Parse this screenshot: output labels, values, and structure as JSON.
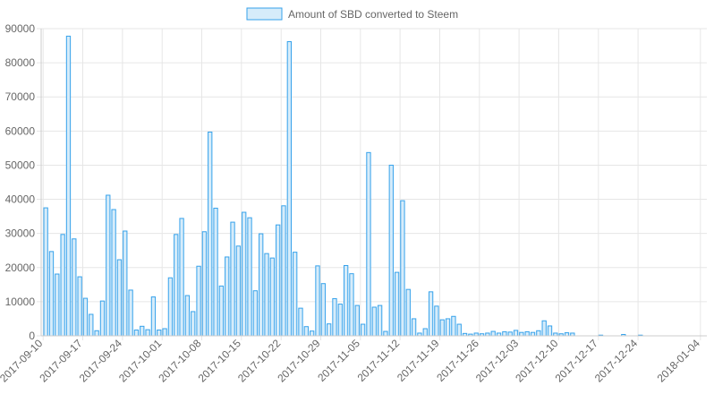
{
  "chart_data": {
    "type": "bar",
    "legend": {
      "placement": "top-center",
      "label": "Amount of SBD converted to Steem"
    },
    "series": [
      {
        "name": "Amount of SBD converted to Steem",
        "fill": "#d6ecfa",
        "stroke": "#36a2eb",
        "values": [
          37500,
          24700,
          18100,
          29700,
          87800,
          28400,
          17300,
          11000,
          6300,
          1500,
          10200,
          41200,
          37000,
          22300,
          30700,
          13400,
          1700,
          2800,
          1800,
          11400,
          1700,
          2100,
          17000,
          29700,
          34400,
          11800,
          7100,
          20400,
          30500,
          59700,
          37400,
          14600,
          23100,
          33300,
          26300,
          36200,
          34600,
          13200,
          29900,
          24100,
          22800,
          32500,
          38100,
          86200,
          24500,
          8100,
          2700,
          1400,
          20500,
          15300,
          3500,
          10900,
          9300,
          20600,
          18200,
          8900,
          3400,
          53700,
          8400,
          8900,
          1300,
          50000,
          18600,
          39600,
          13600,
          5000,
          800,
          2100,
          12900,
          8700,
          4700,
          5000,
          5700,
          3400,
          700,
          500,
          800,
          600,
          800,
          1300,
          800,
          1200,
          1100,
          1600,
          1000,
          1200,
          1000,
          1500,
          4400,
          2900,
          800,
          600,
          900,
          800,
          0,
          0,
          0,
          0,
          200,
          0,
          0,
          0,
          400,
          0,
          0,
          200,
          0,
          0,
          0,
          0,
          0,
          0,
          0,
          0,
          0,
          0,
          0,
          0,
          0
        ]
      }
    ],
    "x_ticks": [
      "2017-09-10",
      "2017-09-17",
      "2017-09-24",
      "2017-10-01",
      "2017-10-08",
      "2017-10-15",
      "2017-10-22",
      "2017-10-29",
      "2017-11-05",
      "2017-11-12",
      "2017-11-19",
      "2017-11-26",
      "2017-12-03",
      "2017-12-10",
      "2017-12-17",
      "2017-12-24",
      "2018-01-04"
    ],
    "y_ticks": [
      "0",
      "10000",
      "20000",
      "30000",
      "40000",
      "50000",
      "60000",
      "70000",
      "80000",
      "90000"
    ],
    "ylim": [
      0,
      90000
    ],
    "grid": true,
    "title": "",
    "xlabel": "",
    "ylabel": ""
  }
}
